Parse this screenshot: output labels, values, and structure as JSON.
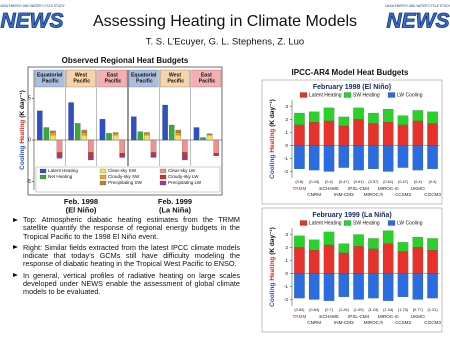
{
  "header": {
    "title": "Assessing Heating in Climate Models",
    "authors": "T. S. L’Ecuyer, G. L. Stephens, Z. Luo",
    "logo_text": "NEWS",
    "logo_caption": "NASA ENERGY AND WATER CYCLE STUDY"
  },
  "left_figure": {
    "title": "Observed Regional Heat Budgets",
    "y_label": {
      "cooling": "Cooling",
      "heating": "Heating",
      "unit": "(K day⁻¹)"
    },
    "ylim": [
      -6,
      6
    ],
    "yticks": [
      -5,
      0,
      5
    ],
    "regions": [
      {
        "name": "Equatorial Pacific",
        "color": "#a9bfe0"
      },
      {
        "name": "West Pacific",
        "color": "#f6d3a8"
      },
      {
        "name": "East Pacific",
        "color": "#f4b0b0"
      },
      {
        "name": "Equatorial Pacific",
        "color": "#a9bfe0"
      },
      {
        "name": "West Pacific",
        "color": "#f6d3a8"
      },
      {
        "name": "East Pacific",
        "color": "#f4b0b0"
      }
    ],
    "panels": [
      {
        "label": "Feb. 1998",
        "period": "(El Niño)"
      },
      {
        "label": "Feb. 1999",
        "period": "(La Niña)"
      }
    ],
    "bars": [
      {
        "series": [
          {
            "name": "Latent Heating",
            "color": "#2f4fc4",
            "values": [
              3.5,
              4.5,
              2.5,
              2.8,
              4.2,
              1.5
            ]
          }
        ]
      },
      {
        "series": [
          {
            "name": "Net Heating",
            "color": "#3aa83a",
            "values": [
              1.5,
              2,
              0.8,
              1,
              1.8,
              0.3
            ]
          }
        ]
      },
      {
        "series": [
          {
            "name": "Clear-sky SW",
            "color": "#f2e14a",
            "values": [
              0.6,
              0.6,
              0.6,
              0.6,
              0.6,
              0.6
            ]
          },
          {
            "name": "Cloudy-sky SW",
            "color": "#f0a030",
            "values": [
              0.3,
              0.3,
              0.2,
              0.2,
              0.3,
              0.1
            ]
          },
          {
            "name": "Precipitating SW",
            "color": "#b8862a",
            "values": [
              0.2,
              0.3,
              0.1,
              0.1,
              0.3,
              0.05
            ]
          }
        ]
      },
      {
        "series": [
          {
            "name": "Clear-sky LW",
            "color": "#f29090",
            "values": [
              -1.5,
              -1.5,
              -1.6,
              -1.5,
              -1.5,
              -1.6
            ]
          },
          {
            "name": "Cloudy-sky LW",
            "color": "#d23030",
            "values": [
              -0.4,
              -0.5,
              -0.3,
              -0.4,
              -0.5,
              -0.2
            ]
          },
          {
            "name": "Precipitating LW",
            "color": "#9a3aa0",
            "values": [
              -0.3,
              -0.4,
              -0.2,
              -0.2,
              -0.4,
              -0.1
            ]
          }
        ]
      }
    ]
  },
  "right_figure": {
    "title": "IPCC-AR4 Model Heat Budgets",
    "y_label": {
      "cooling": "Cooling",
      "heating": "Heating",
      "unit": "(K day⁻¹)"
    },
    "ylim": [
      -2.5,
      3.5
    ],
    "yticks": [
      -2,
      -1,
      0,
      1,
      2,
      3
    ],
    "legend": [
      {
        "name": "Latent Heating",
        "color": "#e8312a"
      },
      {
        "name": "SW Heating",
        "color": "#2bd12b"
      },
      {
        "name": "LW Cooling",
        "color": "#2a6de0"
      }
    ],
    "models": [
      {
        "name": "TRMM",
        "color": "#d22020"
      },
      {
        "name": "CNRM",
        "color": "#222222"
      },
      {
        "name": "ECHAM5",
        "color": "#222222"
      },
      {
        "name": "INM-CM3",
        "color": "#222222"
      },
      {
        "name": "IPSL-CM4",
        "color": "#222222"
      },
      {
        "name": "MIROC-h",
        "color": "#222222"
      },
      {
        "name": "MIROC-m",
        "color": "#222222"
      },
      {
        "name": "CCSM3",
        "color": "#222222"
      },
      {
        "name": "UKMO",
        "color": "#222222"
      },
      {
        "name": "CGCM3",
        "color": "#222222"
      }
    ],
    "charts": [
      {
        "title": "February 1998 (El Niño)",
        "stats": [
          "(0.8)",
          "(0.43)",
          "(0.4)",
          "(0.47)",
          "(0.61)",
          "(0.57)",
          "(0.61)",
          "(0.47)",
          "(0.4)",
          "(0.4)"
        ],
        "values": [
          [
            1.6,
            1.8,
            1.9,
            1.5,
            2.0,
            1.7,
            1.8,
            1.6,
            1.9,
            1.7
          ],
          [
            0.9,
            0.8,
            1.0,
            0.7,
            0.9,
            0.8,
            1.0,
            0.7,
            0.8,
            0.9
          ],
          [
            -1.8,
            -1.9,
            -2.0,
            -1.7,
            -1.9,
            -1.8,
            -2.0,
            -1.7,
            -1.9,
            -1.8
          ]
        ]
      },
      {
        "title": "February 1999 (La Niña)",
        "stats": [
          "(0.60)",
          "(0.84)",
          "(0.7)",
          "(1.26)",
          "(1.09)",
          "(1.24)",
          "(1.34)",
          "(1.75)",
          "(0.77)",
          "(1.31)"
        ],
        "values": [
          [
            2.0,
            1.8,
            2.2,
            1.6,
            2.1,
            1.9,
            2.3,
            1.7,
            2.0,
            1.8
          ],
          [
            0.9,
            0.8,
            1.0,
            0.7,
            0.9,
            0.8,
            1.0,
            0.7,
            0.8,
            0.9
          ],
          [
            -1.9,
            -2.0,
            -2.1,
            -1.8,
            -2.0,
            -1.9,
            -2.1,
            -1.8,
            -2.0,
            -1.9
          ]
        ]
      }
    ]
  },
  "bullets": [
    "Top: Atmospheric diabatic heating estimates from the TRMM satellite quantify the response of regional energy budgets in the Tropical Pacific to the 1998 El Niño event.",
    "Right: Similar fields extracted from the latest IPCC climate models indicate that today’s GCMs still have difficulty modeling the response of diabatic heating in the Tropical West Pacific to ENSO.",
    "In general, vertical profiles of radiative heating on large scales developed under NEWS enable the assessment of global climate models to be evaluated."
  ]
}
